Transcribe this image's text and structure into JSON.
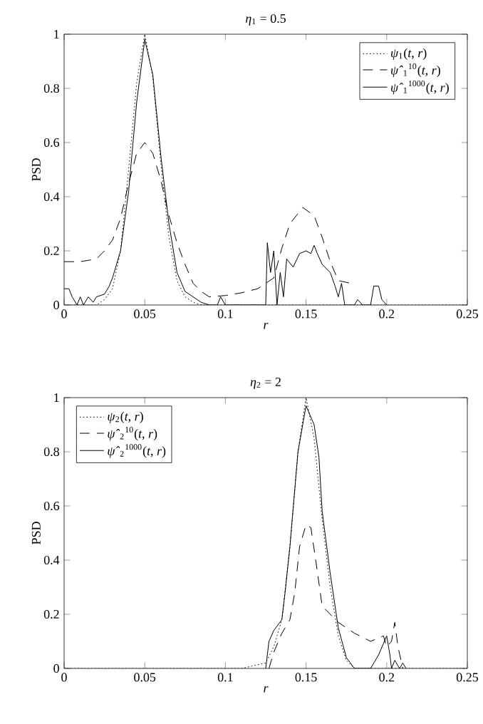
{
  "chart_data": [
    {
      "type": "line",
      "title": "*η*$_{1}$ = 0.5",
      "xlabel": "*r*",
      "ylabel": "PSD",
      "xlim": [
        0,
        0.25
      ],
      "ylim": [
        0,
        1
      ],
      "xticks": [
        0,
        0.05,
        0.1,
        0.15,
        0.2,
        0.25
      ],
      "yticks": [
        0,
        0.2,
        0.4,
        0.6,
        0.8,
        1
      ],
      "legend": "top right",
      "series": [
        {
          "name": "*ψ*$_{1}$(*t*, *r*)",
          "color": "#000000",
          "line_style": "dotted",
          "x": [
            0,
            0.02,
            0.025,
            0.03,
            0.035,
            0.04,
            0.045,
            0.05,
            0.055,
            0.06,
            0.065,
            0.07,
            0.075,
            0.08,
            0.085,
            0.25
          ],
          "values": [
            0,
            0,
            0.02,
            0.06,
            0.2,
            0.5,
            0.82,
            1.0,
            0.84,
            0.52,
            0.25,
            0.09,
            0.03,
            0.01,
            0,
            0
          ]
        },
        {
          "name": "*ψ̂*$_{1}$$^{10}$(*t*, *r*)",
          "color": "#000000",
          "line_style": "dashed",
          "x": [
            0,
            0.01,
            0.02,
            0.025,
            0.03,
            0.035,
            0.04,
            0.045,
            0.05,
            0.055,
            0.06,
            0.065,
            0.07,
            0.075,
            0.08,
            0.085,
            0.09,
            0.1,
            0.11,
            0.12,
            0.13,
            0.135,
            0.14,
            0.148,
            0.155,
            0.16,
            0.165,
            0.17,
            0.178
          ],
          "values": [
            0.16,
            0.16,
            0.17,
            0.2,
            0.24,
            0.32,
            0.45,
            0.56,
            0.6,
            0.56,
            0.46,
            0.33,
            0.23,
            0.15,
            0.08,
            0.05,
            0.03,
            0.035,
            0.045,
            0.06,
            0.1,
            0.21,
            0.3,
            0.36,
            0.33,
            0.25,
            0.16,
            0.09,
            0.08
          ]
        },
        {
          "name": "*ψ̂*$_{1}$$^{1000}$(*t*, *r*)",
          "color": "#000000",
          "line_style": "solid",
          "x": [
            0,
            0.003,
            0.005,
            0.008,
            0.01,
            0.012,
            0.015,
            0.018,
            0.02,
            0.025,
            0.028,
            0.03,
            0.035,
            0.04,
            0.045,
            0.05,
            0.055,
            0.06,
            0.065,
            0.07,
            0.075,
            0.08,
            0.085,
            0.09,
            0.095,
            0.097,
            0.1,
            0.125,
            0.126,
            0.128,
            0.13,
            0.132,
            0.134,
            0.136,
            0.138,
            0.142,
            0.146,
            0.15,
            0.153,
            0.155,
            0.157,
            0.16,
            0.165,
            0.168,
            0.17,
            0.172,
            0.174,
            0.18,
            0.182,
            0.185,
            0.19,
            0.192,
            0.195,
            0.197,
            0.2
          ],
          "values": [
            0.06,
            0.06,
            0.03,
            0,
            0.03,
            0,
            0.03,
            0.01,
            0.03,
            0.04,
            0.07,
            0.1,
            0.2,
            0.42,
            0.75,
            0.98,
            0.85,
            0.55,
            0.3,
            0.12,
            0.05,
            0.03,
            0.01,
            0,
            0,
            0.03,
            0,
            0,
            0.23,
            0.12,
            0.2,
            0,
            0.12,
            0.03,
            0.17,
            0.14,
            0.19,
            0.2,
            0.19,
            0.22,
            0.19,
            0.15,
            0.12,
            0.07,
            0.03,
            0.08,
            0,
            0,
            0.02,
            0,
            0,
            0.07,
            0.07,
            0.02,
            0
          ]
        }
      ]
    },
    {
      "type": "line",
      "title": "*η*$_{2}$ = 2",
      "xlabel": "*r*",
      "ylabel": "PSD",
      "xlim": [
        0,
        0.25
      ],
      "ylim": [
        0,
        1
      ],
      "xticks": [
        0,
        0.05,
        0.1,
        0.15,
        0.2,
        0.25
      ],
      "yticks": [
        0,
        0.2,
        0.4,
        0.6,
        0.8,
        1
      ],
      "legend": "top left",
      "series": [
        {
          "name": "*ψ*$_{2}$(*t*, *r*)",
          "color": "#000000",
          "line_style": "dotted",
          "x": [
            0,
            0.11,
            0.125,
            0.13,
            0.135,
            0.14,
            0.145,
            0.15,
            0.155,
            0.16,
            0.165,
            0.17,
            0.175,
            0.18,
            0.25
          ],
          "values": [
            0,
            0,
            0.02,
            0.08,
            0.18,
            0.45,
            0.8,
            1.0,
            0.85,
            0.55,
            0.3,
            0.12,
            0.03,
            0,
            0
          ]
        },
        {
          "name": "*ψ̂*$_{2}$$^{10}$(*t*, *r*)",
          "color": "#000000",
          "line_style": "dashed",
          "x": [
            0.127,
            0.13,
            0.135,
            0.14,
            0.143,
            0.146,
            0.15,
            0.153,
            0.156,
            0.16,
            0.17,
            0.18,
            0.19,
            0.198,
            0.2,
            0.203,
            0.205,
            0.207,
            0.21
          ],
          "values": [
            0,
            0.06,
            0.13,
            0.18,
            0.28,
            0.45,
            0.53,
            0.52,
            0.4,
            0.23,
            0.17,
            0.13,
            0.1,
            0.12,
            0.08,
            0.1,
            0.17,
            0.08,
            0
          ]
        },
        {
          "name": "*ψ̂*$_{2}$$^{1000}$(*t*, *r*)",
          "color": "#000000",
          "line_style": "solid",
          "x": [
            0.125,
            0.127,
            0.13,
            0.135,
            0.137,
            0.14,
            0.145,
            0.15,
            0.155,
            0.158,
            0.16,
            0.165,
            0.17,
            0.175,
            0.18,
            0.19,
            0.195,
            0.2,
            0.202,
            0.203,
            0.205,
            0.208,
            0.21,
            0.212
          ],
          "values": [
            0,
            0.1,
            0.14,
            0.18,
            0.28,
            0.45,
            0.8,
            0.97,
            0.9,
            0.78,
            0.58,
            0.35,
            0.15,
            0.04,
            0,
            0,
            0.05,
            0.12,
            0.05,
            0,
            0.03,
            0,
            0.02,
            0
          ]
        }
      ]
    }
  ]
}
